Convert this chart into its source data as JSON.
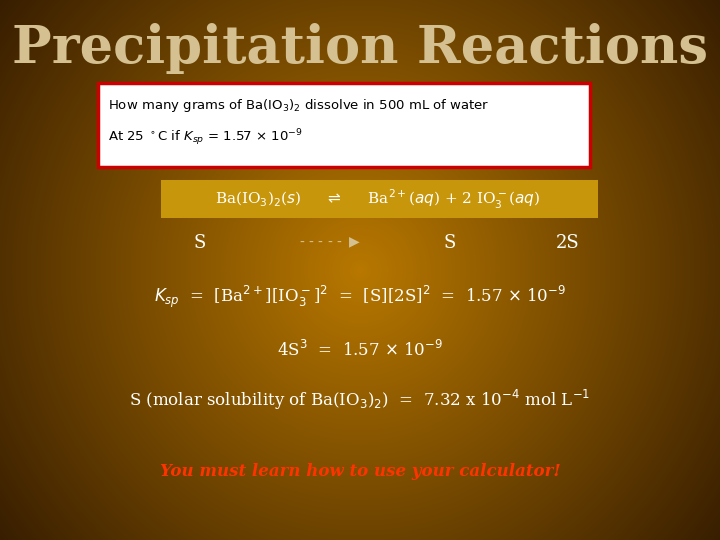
{
  "title": "Precipitation Reactions",
  "title_color": "#d4c090",
  "title_fontsize": 38,
  "question_line1": "How many grams of Ba(IO₃)₂ dissolve in 500 mL of water",
  "question_line2": "At 25 °C if K_sp = 1.57 × 10⁻⁹",
  "calculator_line": "You must learn how to use your calculator!",
  "calculator_color": "#ff3300",
  "text_color": "#ffffff",
  "eq_bg": "#c8960a",
  "box_edge": "#cc0000",
  "box_fill": "#ffffff"
}
